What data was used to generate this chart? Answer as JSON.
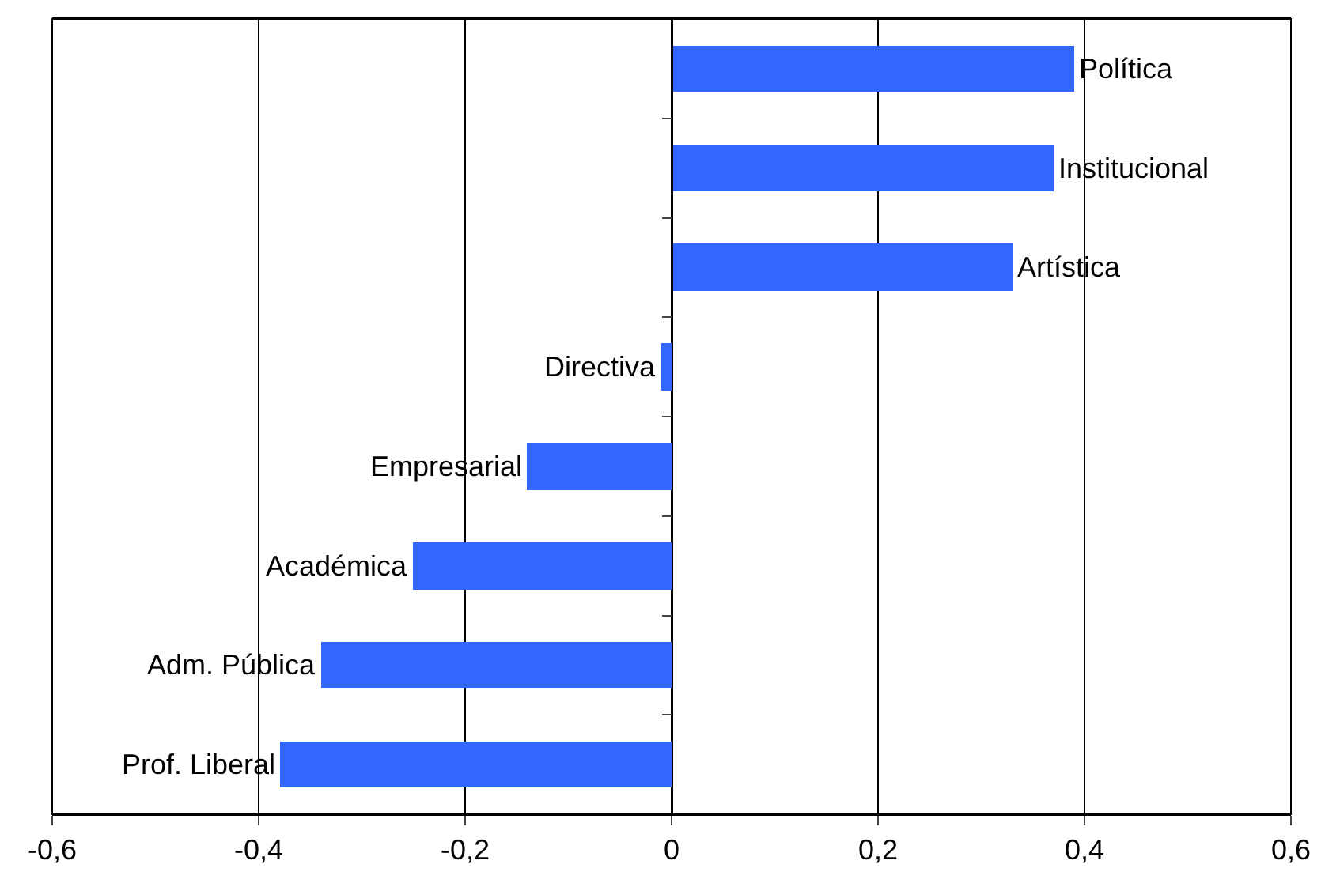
{
  "chart_data": {
    "type": "bar",
    "orientation": "horizontal",
    "categories": [
      "Política",
      "Institucional",
      "Artística",
      "Directiva",
      "Empresarial",
      "Académica",
      "Adm. Pública",
      "Prof. Liberal"
    ],
    "values": [
      0.39,
      0.37,
      0.33,
      -0.01,
      -0.14,
      -0.25,
      -0.34,
      -0.38
    ],
    "color": "#3366ff",
    "xlim": [
      -0.6,
      0.6
    ],
    "xticks": [
      {
        "value": -0.6,
        "label": "-0,6"
      },
      {
        "value": -0.4,
        "label": "-0,4"
      },
      {
        "value": -0.2,
        "label": "-0,2"
      },
      0,
      {
        "value": 0.2,
        "label": "0,2"
      },
      {
        "value": 0.4,
        "label": "0,4"
      },
      {
        "value": 0.6,
        "label": "0,6"
      }
    ],
    "grid": "x",
    "tick_labels": "x",
    "legend": false
  }
}
